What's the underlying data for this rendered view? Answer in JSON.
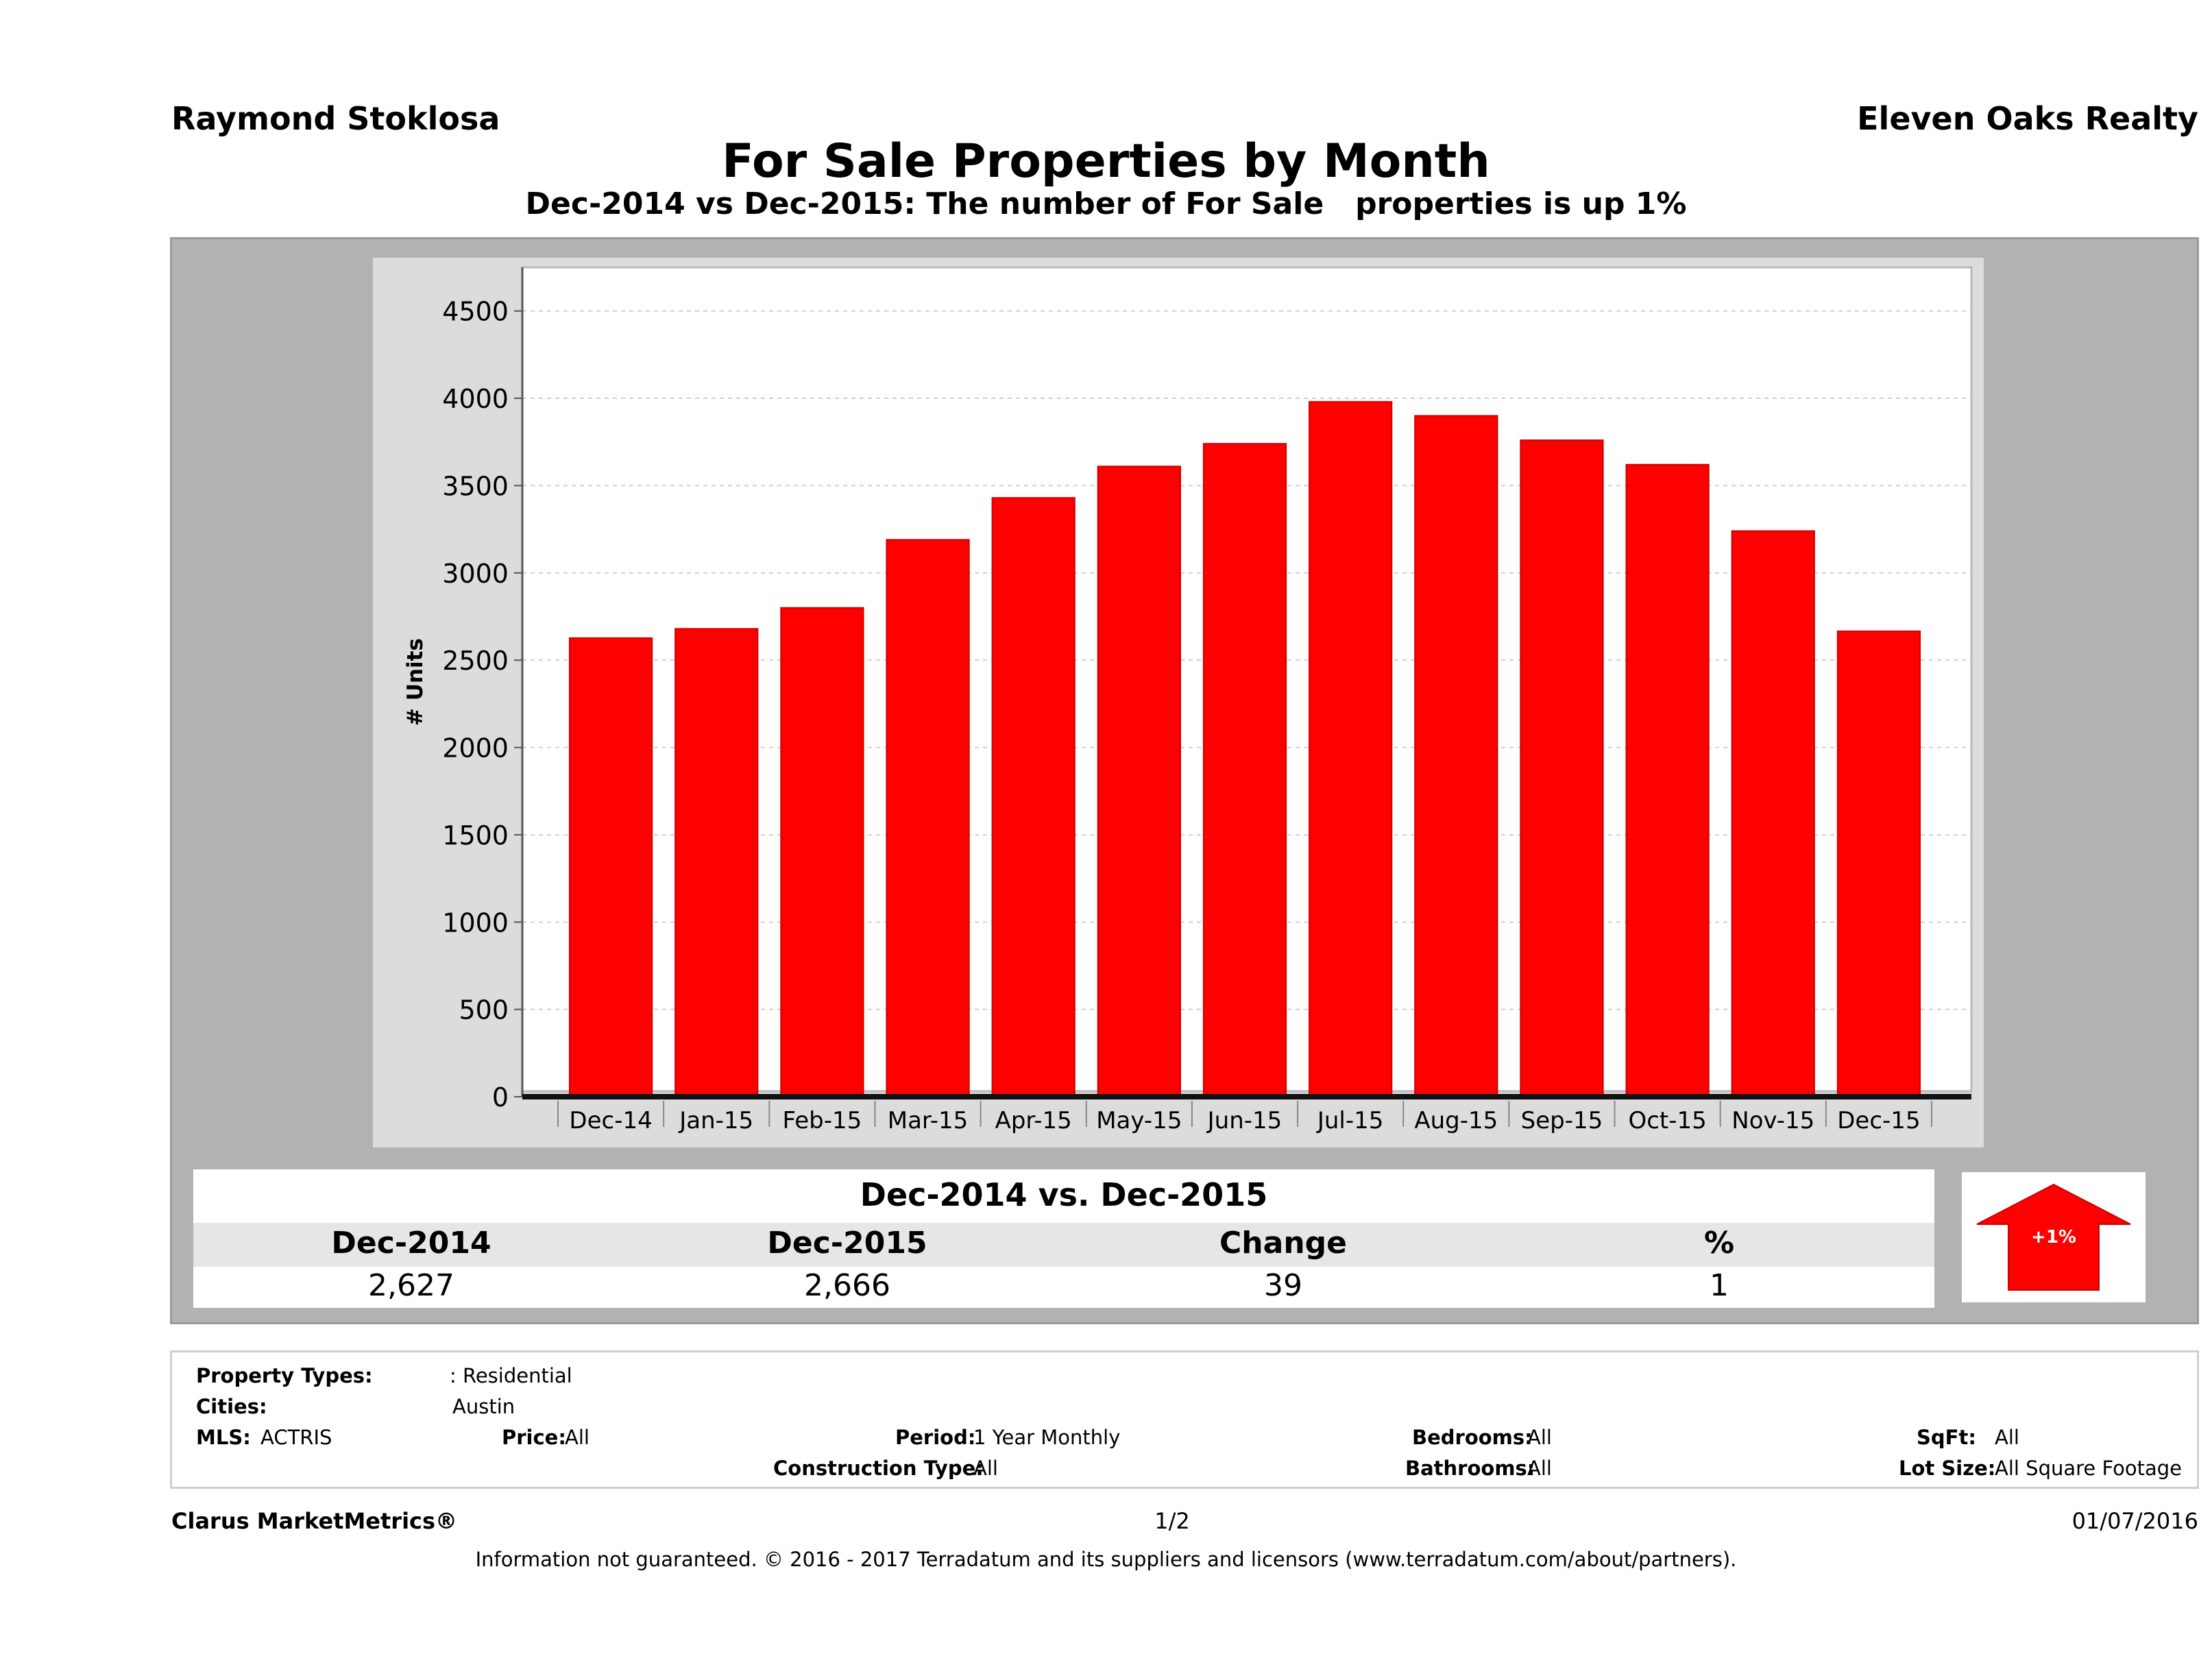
{
  "header": {
    "agent": "Raymond Stoklosa",
    "brokerage": "Eleven Oaks Realty",
    "title": "For Sale Properties by Month",
    "subtitle": "Dec-2014 vs Dec-2015: The number of For Sale   properties is up 1%"
  },
  "chart_data": {
    "type": "bar",
    "title": "",
    "xlabel": "",
    "ylabel": "# Units",
    "categories": [
      "Dec-14",
      "Jan-15",
      "Feb-15",
      "Mar-15",
      "Apr-15",
      "May-15",
      "Jun-15",
      "Jul-15",
      "Aug-15",
      "Sep-15",
      "Oct-15",
      "Nov-15",
      "Dec-15"
    ],
    "values": [
      2627,
      2680,
      2800,
      3190,
      3430,
      3610,
      3740,
      3980,
      3900,
      3760,
      3620,
      3240,
      2666
    ],
    "ylim": [
      0,
      4750
    ],
    "yticks": [
      0,
      500,
      1000,
      1500,
      2000,
      2500,
      3000,
      3500,
      4000,
      4500
    ],
    "grid": true,
    "bar_color": "#ff0000"
  },
  "summary": {
    "title": "Dec-2014 vs. Dec-2015",
    "headers": [
      "Dec-2014",
      "Dec-2015",
      "Change",
      "%"
    ],
    "values": [
      "2,627",
      "2,666",
      "39",
      "1"
    ],
    "arrow_label": "+1%",
    "arrow_color": "#ff0000"
  },
  "filters": {
    "property_types_label": "Property Types:",
    "property_types_value": ": Residential",
    "cities_label": "Cities:",
    "cities_value": "Austin",
    "mls_label": "MLS:",
    "mls_value": "ACTRIS",
    "price_label": "Price:",
    "price_value": "All",
    "period_label": "Period:",
    "period_value": "1 Year Monthly",
    "construction_label": "Construction Type:",
    "construction_value": "All",
    "bedrooms_label": "Bedrooms:",
    "bedrooms_value": "All",
    "bathrooms_label": "Bathrooms:",
    "bathrooms_value": "All",
    "sqft_label": "SqFt:",
    "sqft_value": "All",
    "lotsize_label": "Lot Size:",
    "lotsize_value": "All Square Footage"
  },
  "footer": {
    "brand": "Clarus MarketMetrics®",
    "page": "1/2",
    "date": "01/07/2016",
    "disclaimer": "Information not guaranteed. © 2016 - 2017 Terradatum and its suppliers and licensors (www.terradatum.com/about/partners)."
  }
}
